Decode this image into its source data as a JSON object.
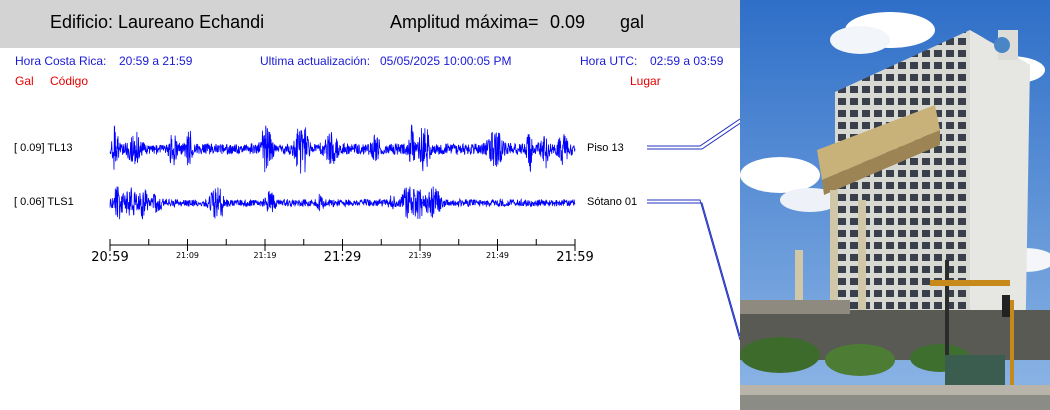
{
  "header": {
    "title": "Edificio: Laureano Echandi",
    "amplitude_label": "Amplitud máxima=",
    "amplitude_value": "0.09",
    "amplitude_unit": "gal"
  },
  "info": {
    "local_time_label": "Hora Costa Rica:",
    "local_time_range": "20:59 a 21:59",
    "update_label": "Ultima actualización:",
    "update_value": "05/05/2025 10:00:05 PM",
    "utc_label": "Hora UTC:",
    "utc_range": "02:59 a 03:59"
  },
  "columns": {
    "gal": "Gal",
    "code": "Código",
    "place": "Lugar"
  },
  "colors": {
    "trace": "#0000ff",
    "header_bg": "#d3d3d3",
    "info_text": "#1a1ad6",
    "column_text": "#e60000"
  },
  "chart_data": {
    "type": "line",
    "title": "",
    "x_tick_labels": [
      "20:59",
      "21:09",
      "21:19",
      "21:29",
      "21:39",
      "21:49",
      "21:59"
    ],
    "x_range": [
      "20:59",
      "21:59"
    ],
    "grid": false,
    "series": [
      {
        "name": "TL13",
        "gal_label": "[   0.09] TL13",
        "amplitude": 0.09,
        "place": "Piso 13"
      },
      {
        "name": "TLS1",
        "gal_label": "[   0.06] TLS1",
        "amplitude": 0.06,
        "place": "Sótano 01"
      }
    ]
  },
  "photo": {
    "icon": "building-photo"
  }
}
